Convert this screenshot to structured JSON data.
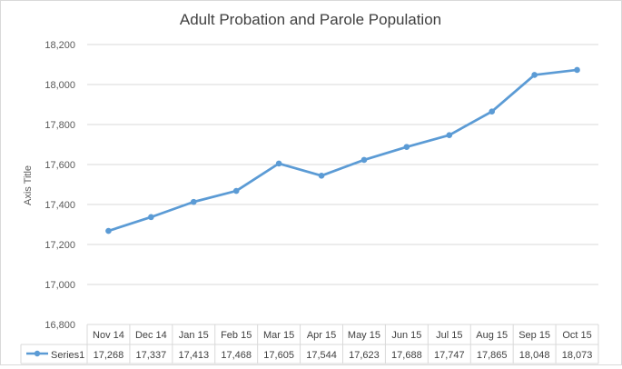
{
  "chart_data": {
    "type": "line",
    "title": "Adult Probation and Parole Population",
    "ylabel": "Axis Title",
    "xlabel": "",
    "ylim": [
      16800,
      18200
    ],
    "yticks": [
      "16,800",
      "17,000",
      "17,200",
      "17,400",
      "17,600",
      "17,800",
      "18,000",
      "18,200"
    ],
    "ytick_values": [
      16800,
      17000,
      17200,
      17400,
      17600,
      17800,
      18000,
      18200
    ],
    "grid": true,
    "legend": "data table",
    "categories": [
      "Nov 14",
      "Dec 14",
      "Jan 15",
      "Feb 15",
      "Mar 15",
      "Apr 15",
      "May 15",
      "Jun 15",
      "Jul 15",
      "Aug 15",
      "Sep 15",
      "Oct 15"
    ],
    "series": [
      {
        "name": "Series1",
        "color": "#5b9bd5",
        "values": [
          17268,
          17337,
          17413,
          17468,
          17605,
          17544,
          17623,
          17688,
          17747,
          17865,
          18048,
          18073
        ],
        "labels": [
          "17,268",
          "17,337",
          "17,413",
          "17,468",
          "17,605",
          "17,544",
          "17,623",
          "17,688",
          "17,747",
          "17,865",
          "18,048",
          "18,073"
        ]
      }
    ]
  }
}
